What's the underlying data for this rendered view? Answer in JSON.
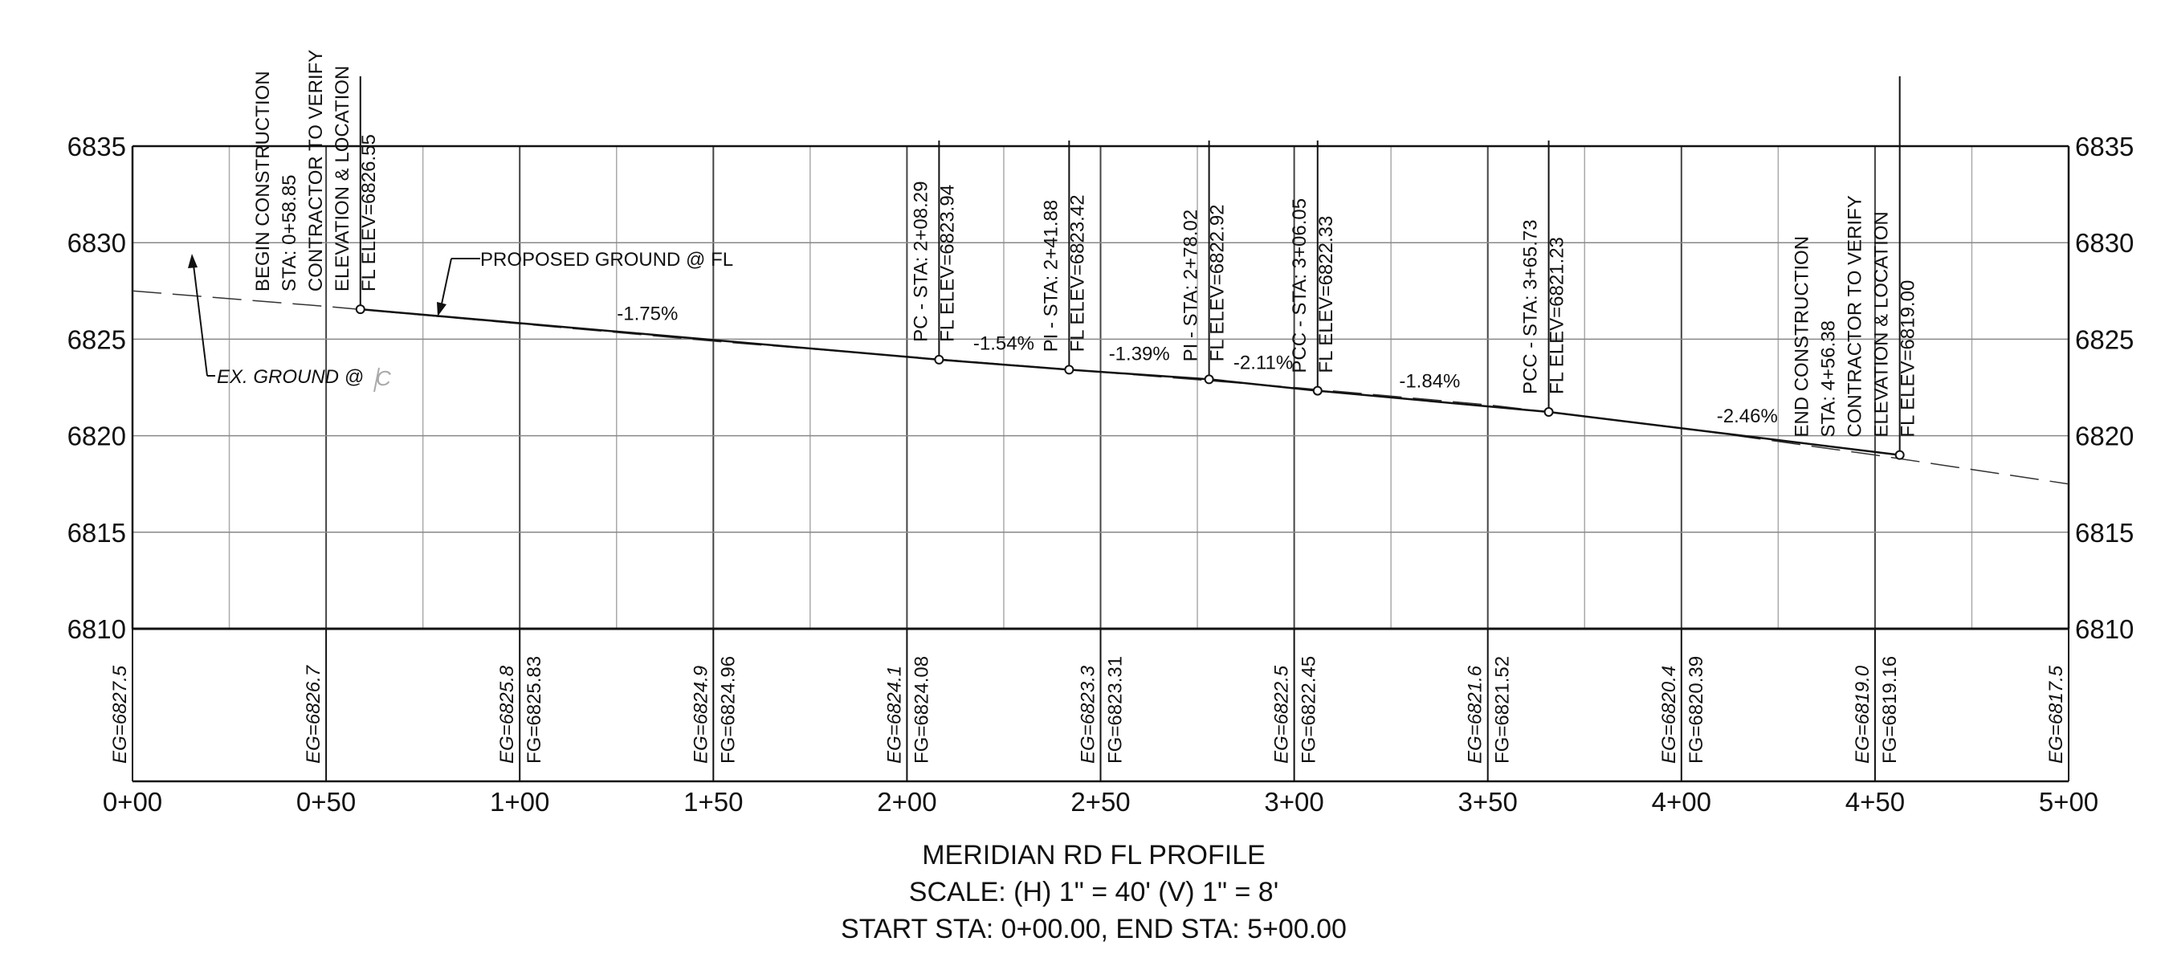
{
  "profile": {
    "title": "MERIDIAN RD FL PROFILE",
    "scale": "SCALE: (H) 1\" = 40' (V) 1\" = 8'",
    "range": "START STA: 0+00.00, END STA: 5+00.00",
    "y_ticks": [
      6835,
      6830,
      6825,
      6820,
      6815,
      6810
    ],
    "x_ticks": [
      "0+00",
      "0+50",
      "1+00",
      "1+50",
      "2+00",
      "2+50",
      "3+00",
      "3+50",
      "4+00",
      "4+50",
      "5+00"
    ],
    "station_range": [
      0,
      500
    ],
    "elev_range": [
      6810,
      6835
    ],
    "bottom_labels": [
      {
        "sta": 0,
        "eg": "EG=6827.5",
        "fg": ""
      },
      {
        "sta": 50,
        "eg": "EG=6826.7",
        "fg": ""
      },
      {
        "sta": 100,
        "eg": "EG=6825.8",
        "fg": "FG=6825.83"
      },
      {
        "sta": 150,
        "eg": "EG=6824.9",
        "fg": "FG=6824.96"
      },
      {
        "sta": 200,
        "eg": "EG=6824.1",
        "fg": "FG=6824.08"
      },
      {
        "sta": 250,
        "eg": "EG=6823.3",
        "fg": "FG=6823.31"
      },
      {
        "sta": 300,
        "eg": "EG=6822.5",
        "fg": "FG=6822.45"
      },
      {
        "sta": 350,
        "eg": "EG=6821.6",
        "fg": "FG=6821.52"
      },
      {
        "sta": 400,
        "eg": "EG=6820.4",
        "fg": "FG=6820.39"
      },
      {
        "sta": 450,
        "eg": "EG=6819.0",
        "fg": "FG=6819.16"
      },
      {
        "sta": 500,
        "eg": "EG=6817.5",
        "fg": ""
      }
    ],
    "existing_ground": [
      [
        0,
        6827.5
      ],
      [
        50,
        6826.7
      ],
      [
        100,
        6825.8
      ],
      [
        150,
        6824.9
      ],
      [
        200,
        6824.1
      ],
      [
        250,
        6823.3
      ],
      [
        300,
        6822.5
      ],
      [
        350,
        6821.6
      ],
      [
        400,
        6820.4
      ],
      [
        450,
        6819.0
      ],
      [
        500,
        6817.5
      ]
    ],
    "proposed_ground": [
      [
        58.85,
        6826.55
      ],
      [
        208.29,
        6823.94
      ],
      [
        241.88,
        6823.42
      ],
      [
        278.02,
        6822.92
      ],
      [
        306.05,
        6822.33
      ],
      [
        365.73,
        6821.23
      ],
      [
        456.38,
        6819.0
      ]
    ],
    "slopes": [
      {
        "text": "-1.75%",
        "sta": 133,
        "elev": 6826.0
      },
      {
        "text": "-1.54%",
        "sta": 225,
        "elev": 6824.45
      },
      {
        "text": "-1.39%",
        "sta": 260,
        "elev": 6823.92
      },
      {
        "text": "-2.11%",
        "sta": 292,
        "elev": 6823.45
      },
      {
        "text": "-1.84%",
        "sta": 335,
        "elev": 6822.5
      },
      {
        "text": "-2.46%",
        "sta": 417,
        "elev": 6820.7
      }
    ],
    "points": [
      {
        "sta": 58.85,
        "elev": 6826.55,
        "lines": [
          "BEGIN CONSTRUCTION",
          "STA: 0+58.85",
          "CONTRACTOR TO VERIFY",
          "ELEVATION & LOCATION",
          "FL ELEV=6826.55"
        ]
      },
      {
        "sta": 208.29,
        "elev": 6823.94,
        "lines": [
          "PC - STA: 2+08.29",
          "FL ELEV=6823.94"
        ]
      },
      {
        "sta": 241.88,
        "elev": 6823.42,
        "lines": [
          "PI - STA: 2+41.88",
          "FL ELEV=6823.42"
        ]
      },
      {
        "sta": 278.02,
        "elev": 6822.92,
        "lines": [
          "PI - STA: 2+78.02",
          "FL ELEV=6822.92"
        ]
      },
      {
        "sta": 306.05,
        "elev": 6822.33,
        "lines": [
          "PCC - STA: 3+06.05",
          "FL ELEV=6822.33"
        ]
      },
      {
        "sta": 365.73,
        "elev": 6821.23,
        "lines": [
          "PCC - STA: 3+65.73",
          "FL ELEV=6821.23"
        ]
      },
      {
        "sta": 456.38,
        "elev": 6819.0,
        "lines": [
          "END CONSTRUCTION",
          "STA: 4+56.38",
          "CONTRACTOR TO VERIFY",
          "ELEVATION & LOCATION",
          "FL ELEV=6819.00"
        ]
      }
    ],
    "callouts": {
      "proposed": "PROPOSED GROUND @ FL",
      "existing": "EX. GROUND @"
    }
  }
}
